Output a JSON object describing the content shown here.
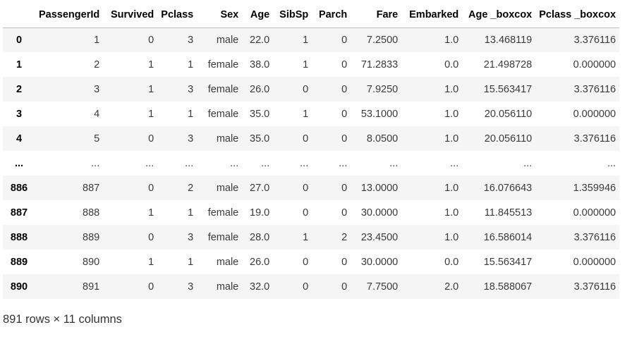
{
  "table": {
    "index_header": "",
    "columns": [
      "PassengerId",
      "Survived",
      "Pclass",
      "Sex",
      "Age",
      "SibSp",
      "Parch",
      "Fare",
      "Embarked",
      "Age _boxcox",
      "Pclass _boxcox"
    ],
    "rows": [
      {
        "index": "0",
        "cells": [
          "1",
          "0",
          "3",
          "male",
          "22.0",
          "1",
          "0",
          "7.2500",
          "1.0",
          "13.468119",
          "3.376116"
        ]
      },
      {
        "index": "1",
        "cells": [
          "2",
          "1",
          "1",
          "female",
          "38.0",
          "1",
          "0",
          "71.2833",
          "0.0",
          "21.498728",
          "0.000000"
        ]
      },
      {
        "index": "2",
        "cells": [
          "3",
          "1",
          "3",
          "female",
          "26.0",
          "0",
          "0",
          "7.9250",
          "1.0",
          "15.563417",
          "3.376116"
        ]
      },
      {
        "index": "3",
        "cells": [
          "4",
          "1",
          "1",
          "female",
          "35.0",
          "1",
          "0",
          "53.1000",
          "1.0",
          "20.056110",
          "0.000000"
        ]
      },
      {
        "index": "4",
        "cells": [
          "5",
          "0",
          "3",
          "male",
          "35.0",
          "0",
          "0",
          "8.0500",
          "1.0",
          "20.056110",
          "3.376116"
        ]
      },
      {
        "index": "...",
        "cells": [
          "...",
          "...",
          "...",
          "...",
          "...",
          "...",
          "...",
          "...",
          "...",
          "...",
          "..."
        ]
      },
      {
        "index": "886",
        "cells": [
          "887",
          "0",
          "2",
          "male",
          "27.0",
          "0",
          "0",
          "13.0000",
          "1.0",
          "16.076643",
          "1.359946"
        ]
      },
      {
        "index": "887",
        "cells": [
          "888",
          "1",
          "1",
          "female",
          "19.0",
          "0",
          "0",
          "30.0000",
          "1.0",
          "11.845513",
          "0.000000"
        ]
      },
      {
        "index": "888",
        "cells": [
          "889",
          "0",
          "3",
          "female",
          "28.0",
          "1",
          "2",
          "23.4500",
          "1.0",
          "16.586014",
          "3.376116"
        ]
      },
      {
        "index": "889",
        "cells": [
          "890",
          "1",
          "1",
          "male",
          "26.0",
          "0",
          "0",
          "30.0000",
          "0.0",
          "15.563417",
          "0.000000"
        ]
      },
      {
        "index": "890",
        "cells": [
          "891",
          "0",
          "3",
          "male",
          "32.0",
          "0",
          "0",
          "7.7500",
          "2.0",
          "18.588067",
          "3.376116"
        ]
      }
    ]
  },
  "shape_note": "891 rows × 11 columns",
  "colors": {
    "stripe": "#f5f5f5",
    "header_rule": "#bdbdbd",
    "cell_text": "#3a3a3a"
  }
}
